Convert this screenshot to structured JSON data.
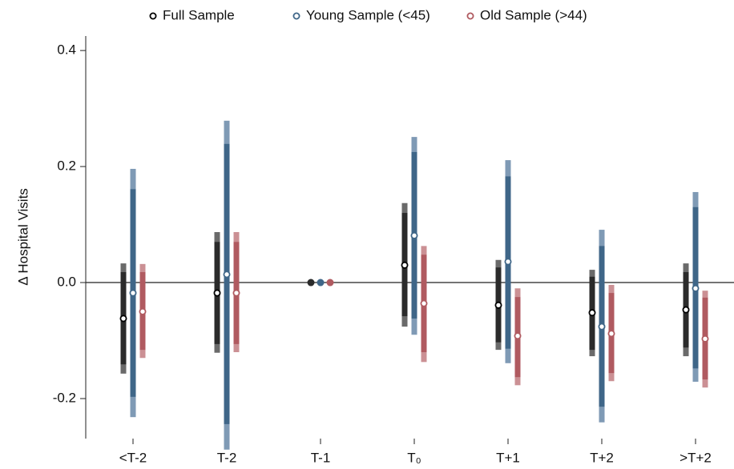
{
  "chart_data": {
    "type": "coefplot",
    "ylabel": "Δ Hospital Visits",
    "categories": [
      "<T-2",
      "T-2",
      "T-1",
      "T₀",
      "T+1",
      "T+2",
      ">T+2"
    ],
    "ylim": [
      -0.269,
      0.425
    ],
    "yticks": [
      -0.2,
      {
        "value": 0,
        "label": "0.0"
      },
      0.2,
      0.4
    ],
    "zero_line": true,
    "legend": "top",
    "series": [
      {
        "name": "Full Sample",
        "color": "#2b2b2b",
        "outer_color": "#6a6a6a",
        "values": [
          -0.062,
          -0.018,
          0,
          0.03,
          -0.039,
          -0.052,
          -0.047
        ],
        "ci_inner_low": [
          -0.141,
          -0.106,
          null,
          -0.058,
          -0.103,
          -0.116,
          -0.112
        ],
        "ci_inner_high": [
          0.018,
          0.07,
          null,
          0.12,
          0.026,
          0.01,
          0.018
        ],
        "ci_outer_low": [
          -0.157,
          -0.121,
          null,
          -0.076,
          -0.116,
          -0.127,
          -0.127
        ],
        "ci_outer_high": [
          0.033,
          0.087,
          null,
          0.137,
          0.039,
          0.022,
          0.033
        ]
      },
      {
        "name": "Young Sample (<45)",
        "color": "#3f6688",
        "outer_color": "#7f9ab5",
        "values": [
          -0.018,
          0.014,
          0,
          0.081,
          0.036,
          -0.076,
          -0.01
        ],
        "ci_inner_low": [
          -0.197,
          -0.244,
          null,
          -0.062,
          -0.114,
          -0.214,
          -0.148
        ],
        "ci_inner_high": [
          0.161,
          0.239,
          null,
          0.225,
          0.183,
          0.063,
          0.13
        ],
        "ci_outer_low": [
          -0.232,
          -0.288,
          null,
          -0.09,
          -0.139,
          -0.241,
          -0.171
        ],
        "ci_outer_high": [
          0.196,
          0.279,
          null,
          0.251,
          0.211,
          0.091,
          0.156
        ]
      },
      {
        "name": "Old Sample (>44)",
        "color": "#b05a60",
        "outer_color": "#cb9094",
        "values": [
          -0.05,
          -0.018,
          0,
          -0.036,
          -0.092,
          -0.088,
          -0.097
        ],
        "ci_inner_low": [
          -0.116,
          -0.106,
          null,
          -0.12,
          -0.163,
          -0.156,
          -0.167
        ],
        "ci_inner_high": [
          0.018,
          0.07,
          null,
          0.048,
          -0.025,
          -0.018,
          -0.026
        ],
        "ci_outer_low": [
          -0.13,
          -0.12,
          null,
          -0.137,
          -0.177,
          -0.17,
          -0.181
        ],
        "ci_outer_high": [
          0.032,
          0.087,
          null,
          0.063,
          -0.01,
          -0.004,
          -0.014
        ]
      }
    ]
  }
}
